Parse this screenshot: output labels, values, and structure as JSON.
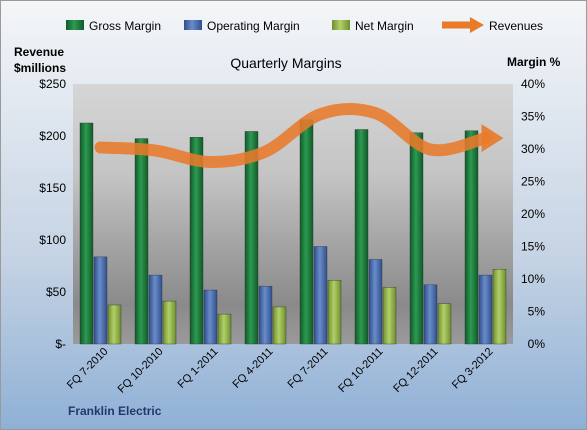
{
  "chart_data": {
    "type": "bar",
    "title": "Quarterly Margins",
    "left_axis_title_line1": "Revenue",
    "left_axis_title_line2": "$millions",
    "right_axis_title": "Margin %",
    "company": "Franklin Electric",
    "legend_position": "top",
    "grid": false,
    "categories": [
      "FQ 7-2010",
      "FQ 10-2010",
      "FQ 1-2011",
      "FQ 4-2011",
      "FQ 7-2011",
      "FQ 10-2011",
      "FQ 12-2011",
      "FQ 3-2012"
    ],
    "y_left": {
      "range": [
        0,
        250
      ],
      "ticks": [
        0,
        50,
        100,
        150,
        200,
        250
      ],
      "tick_labels": [
        "$-",
        "$50",
        "$100",
        "$150",
        "$200",
        "$250"
      ]
    },
    "y_right": {
      "range": [
        0,
        40
      ],
      "ticks": [
        0,
        5,
        10,
        15,
        20,
        25,
        30,
        35,
        40
      ],
      "tick_labels": [
        "0%",
        "5%",
        "10%",
        "15%",
        "20%",
        "25%",
        "30%",
        "35%",
        "40%"
      ]
    },
    "series": [
      {
        "name": "Gross Margin",
        "axis": "right",
        "kind": "bar",
        "color": "#1E7B3E",
        "values": [
          34.0,
          31.6,
          31.8,
          32.7,
          34.5,
          33.0,
          32.5,
          32.8
        ]
      },
      {
        "name": "Operating Margin",
        "axis": "right",
        "kind": "bar",
        "color": "#4A6DB0",
        "values": [
          13.4,
          10.6,
          8.3,
          8.9,
          15.0,
          13.0,
          9.1,
          10.6
        ]
      },
      {
        "name": "Net Margin",
        "axis": "right",
        "kind": "bar",
        "color": "#8FB545",
        "values": [
          6.0,
          6.6,
          4.6,
          5.7,
          9.8,
          8.7,
          6.2,
          11.5
        ]
      },
      {
        "name": "Revenues",
        "axis": "left",
        "kind": "line",
        "color": "#E87A2A",
        "values": [
          189,
          186,
          175,
          185,
          221,
          222,
          187,
          198
        ]
      }
    ]
  }
}
